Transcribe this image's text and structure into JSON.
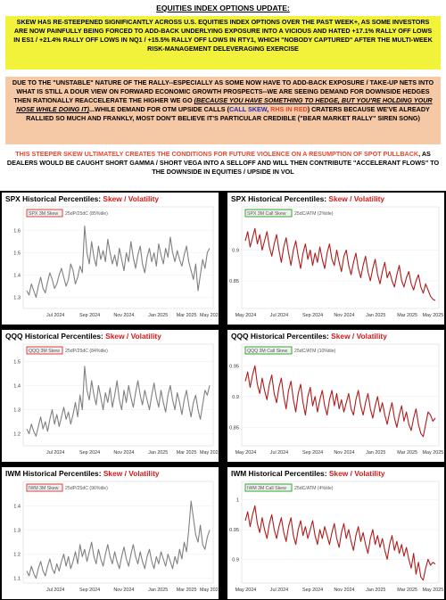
{
  "header": {
    "title": "EQUITIES INDEX OPTIONS UPDATE:"
  },
  "yellow_box": {
    "text": "SKEW HAS RE-STEEPENED SIGNIFICANTLY ACROSS U.S. EQUITIES INDEX OPTIONS OVER THE PAST WEEK+, AS SOME INVESTORS ARE NOW PAINFULLY BEING FORCED TO ADD-BACK UNDERLYING EXPOSURE INTO A VICIOUS AND HATED +17.1% RALLY OFF LOWS IN ES1 / +21.4% RALLY OFF LOWS IN NQ1 / +15.5% RALLY OFF LOWS IN RTY1, WHICH \"NOBODY CAPTURED\" AFTER THE MULTI-WEEK RISK-MANAGEMENT DELEVERAGING EXERCISE"
  },
  "peach_box": {
    "part1": "DUE TO THE \"UNSTABLE\" NATURE OF THE RALLY--ESPECIALLY AS SOME NOW HAVE TO ADD-BACK EXPOSURE / TAKE-UP NETS INTO WHAT IS STILL A DOUR VIEW ON FORWARD ECONOMIC GROWTH PROSPECTS--WE ARE SEEING DEMAND FOR DOWNSIDE HEDGES THEN RATIONALLY REACCELERATE THE HIGHER WE GO ",
    "part2": "(BECAUSE YOU HAVE SOMETHING TO HEDGE, BUT YOU'RE HOLDING YOUR NOSE WHILE DOING IT)",
    "part3": "...WHILE DEMAND FOR OTM UPSIDE CALLS (",
    "call_skew": "CALL SKEW",
    "comma": ", ",
    "rhs_red": "RHS IN RED",
    "part4": ") CRATERS BECAUSE WE'VE ALREADY RALLIED SO MUCH AND FRANKLY, MOST DON'T BELIEVE IT'S PARTICULAR CREDIBLE (\"BEAR MARKET RALLY\" SIREN SONG)"
  },
  "warning": {
    "highlight": "THIS STEEPER SKEW ULTIMATELY CREATES THE CONDITIONS FOR FUTURE VIOLENCE ON A RESUMPTION OF SPOT PULLBACK",
    "rest": ", AS DEALERS WOULD BE CAUGHT SHORT GAMMA / SHORT VEGA INTO A SELLOFF AND WILL THEN CONTRIBUTE \"ACCELERANT FLOWS\" TO THE DOWNSIDE IN EQUITIES / UPSIDE IN VOL"
  },
  "colors": {
    "put_line": "#808080",
    "call_line": "#b01c1c",
    "put_legend_border": "#d94040",
    "call_legend_border": "#2ea82e",
    "title_red": "#d21b1b"
  },
  "chart_data": [
    {
      "id": "spx-put",
      "type": "line",
      "title_prefix": "SPX Historical Percentiles: ",
      "title_highlight": "Skew / Volatility",
      "legend_label": "SPX 3M Skew",
      "legend_note": "25dP/25dC (85%tile)",
      "ylim": [
        1.25,
        1.65
      ],
      "yticks": [
        "1.3",
        "1.4",
        "1.5",
        "1.6"
      ],
      "ytick_values": [
        1.3,
        1.4,
        1.5,
        1.6
      ],
      "xticks": [
        "Jul 2024",
        "Sep 2024",
        "Nov 2024",
        "Jan 2025",
        "Mar 2025",
        "May 2025"
      ],
      "xtick_pos": [
        0.17,
        0.35,
        0.53,
        0.71,
        0.86,
        0.985
      ],
      "values": [
        1.33,
        1.31,
        1.36,
        1.33,
        1.3,
        1.35,
        1.39,
        1.34,
        1.32,
        1.37,
        1.41,
        1.38,
        1.34,
        1.36,
        1.4,
        1.43,
        1.39,
        1.35,
        1.38,
        1.45,
        1.42,
        1.36,
        1.39,
        1.44,
        1.41,
        1.62,
        1.5,
        1.45,
        1.55,
        1.48,
        1.44,
        1.53,
        1.47,
        1.51,
        1.46,
        1.56,
        1.5,
        1.45,
        1.49,
        1.44,
        1.52,
        1.47,
        1.42,
        1.5,
        1.46,
        1.55,
        1.48,
        1.43,
        1.49,
        1.53,
        1.45,
        1.41,
        1.48,
        1.52,
        1.46,
        1.5,
        1.44,
        1.54,
        1.49,
        1.45,
        1.52,
        1.48,
        1.57,
        1.5,
        1.46,
        1.51,
        1.47,
        1.44,
        1.49,
        1.53,
        1.46,
        1.42,
        1.38,
        1.45,
        1.33,
        1.4,
        1.47,
        1.43,
        1.5,
        1.52
      ],
      "side": "left"
    },
    {
      "id": "spx-call",
      "type": "line",
      "title_prefix": "SPX Historical Percentiles: ",
      "title_highlight": "Skew / Volatility",
      "legend_label": "SPX 3M Call Skew",
      "legend_note": "25dC/ATM (2%tile)",
      "ylim": [
        0.805,
        0.95
      ],
      "yticks": [
        "0.85",
        "0.9"
      ],
      "ytick_values": [
        0.85,
        0.9
      ],
      "xticks": [
        "May 2024",
        "Jul 2024",
        "Sep 2024",
        "Nov 2024",
        "Jan 2025",
        "Mar 2025",
        "May 2025"
      ],
      "xtick_pos": [
        0.02,
        0.19,
        0.36,
        0.52,
        0.68,
        0.84,
        0.97
      ],
      "values": [
        0.915,
        0.93,
        0.905,
        0.92,
        0.935,
        0.91,
        0.925,
        0.9,
        0.915,
        0.93,
        0.905,
        0.89,
        0.91,
        0.925,
        0.9,
        0.88,
        0.905,
        0.92,
        0.895,
        0.875,
        0.9,
        0.915,
        0.89,
        0.87,
        0.895,
        0.91,
        0.885,
        0.9,
        0.875,
        0.895,
        0.88,
        0.905,
        0.885,
        0.87,
        0.895,
        0.91,
        0.885,
        0.875,
        0.9,
        0.88,
        0.865,
        0.89,
        0.9,
        0.875,
        0.86,
        0.88,
        0.895,
        0.87,
        0.855,
        0.875,
        0.89,
        0.865,
        0.85,
        0.87,
        0.885,
        0.86,
        0.845,
        0.865,
        0.88,
        0.855,
        0.865,
        0.85,
        0.84,
        0.86,
        0.875,
        0.85,
        0.84,
        0.855,
        0.865,
        0.845,
        0.835,
        0.85,
        0.86,
        0.84,
        0.83,
        0.845,
        0.835,
        0.825,
        0.82,
        0.818
      ],
      "side": "right"
    },
    {
      "id": "qqq-put",
      "type": "line",
      "title_prefix": "QQQ Historical Percentiles: ",
      "title_highlight": "Skew / Volatility",
      "legend_label": "QQQ 3M Skew",
      "legend_note": "25dP/25dC (84%tile)",
      "ylim": [
        1.15,
        1.52
      ],
      "yticks": [
        "1.2",
        "1.3",
        "1.4",
        "1.5"
      ],
      "ytick_values": [
        1.2,
        1.3,
        1.4,
        1.5
      ],
      "xticks": [
        "Jul 2024",
        "Sep 2024",
        "Nov 2024",
        "Jan 2025",
        "Mar 2025",
        "May 2025"
      ],
      "xtick_pos": [
        0.17,
        0.35,
        0.53,
        0.71,
        0.86,
        0.985
      ],
      "values": [
        1.22,
        1.2,
        1.24,
        1.21,
        1.19,
        1.23,
        1.27,
        1.22,
        1.25,
        1.21,
        1.26,
        1.3,
        1.24,
        1.28,
        1.23,
        1.27,
        1.31,
        1.26,
        1.29,
        1.24,
        1.28,
        1.33,
        1.27,
        1.36,
        1.3,
        1.48,
        1.38,
        1.34,
        1.42,
        1.36,
        1.32,
        1.4,
        1.35,
        1.3,
        1.37,
        1.33,
        1.39,
        1.31,
        1.36,
        1.42,
        1.34,
        1.3,
        1.38,
        1.33,
        1.4,
        1.35,
        1.31,
        1.37,
        1.42,
        1.36,
        1.32,
        1.38,
        1.34,
        1.3,
        1.36,
        1.41,
        1.35,
        1.31,
        1.38,
        1.33,
        1.29,
        1.36,
        1.4,
        1.34,
        1.3,
        1.37,
        1.33,
        1.28,
        1.34,
        1.38,
        1.32,
        1.27,
        1.33,
        1.36,
        1.3,
        1.26,
        1.32,
        1.38,
        1.36,
        1.4
      ],
      "side": "left"
    },
    {
      "id": "qqq-call",
      "type": "line",
      "title_prefix": "QQQ Historical Percentiles: ",
      "title_highlight": "Skew / Volatility",
      "legend_label": "QQQ 3M Call Skew",
      "legend_note": "25dC/ATM (10%tile)",
      "ylim": [
        0.82,
        0.965
      ],
      "yticks": [
        "0.85",
        "0.9",
        "0.95"
      ],
      "ytick_values": [
        0.85,
        0.9,
        0.95
      ],
      "xticks": [
        "May 2024",
        "Jul 2024",
        "Sep 2024",
        "Nov 2024",
        "Jan 2025",
        "Mar 2025",
        "May 2025"
      ],
      "xtick_pos": [
        0.02,
        0.19,
        0.36,
        0.52,
        0.68,
        0.84,
        0.97
      ],
      "values": [
        0.925,
        0.94,
        0.915,
        0.935,
        0.95,
        0.92,
        0.905,
        0.93,
        0.91,
        0.895,
        0.92,
        0.935,
        0.905,
        0.89,
        0.915,
        0.93,
        0.9,
        0.88,
        0.91,
        0.925,
        0.895,
        0.875,
        0.905,
        0.92,
        0.89,
        0.87,
        0.9,
        0.915,
        0.885,
        0.9,
        0.875,
        0.895,
        0.91,
        0.885,
        0.87,
        0.895,
        0.91,
        0.885,
        0.905,
        0.88,
        0.895,
        0.875,
        0.89,
        0.905,
        0.88,
        0.87,
        0.895,
        0.91,
        0.885,
        0.87,
        0.89,
        0.905,
        0.88,
        0.865,
        0.885,
        0.9,
        0.875,
        0.89,
        0.87,
        0.855,
        0.875,
        0.89,
        0.865,
        0.85,
        0.87,
        0.885,
        0.86,
        0.875,
        0.855,
        0.845,
        0.865,
        0.88,
        0.855,
        0.84,
        0.835,
        0.855,
        0.875,
        0.87,
        0.86,
        0.865
      ],
      "side": "right"
    },
    {
      "id": "iwm-put",
      "type": "line",
      "title_prefix": "IWM Historical Percentiles: ",
      "title_highlight": "Skew / Volatility",
      "legend_label": "IWM 3M Skew",
      "legend_note": "25dP/25dC (96%tile)",
      "ylim": [
        1.08,
        1.45
      ],
      "yticks": [
        "1.1",
        "1.2",
        "1.3",
        "1.4"
      ],
      "ytick_values": [
        1.1,
        1.2,
        1.3,
        1.4
      ],
      "xticks": [
        "Jul 2024",
        "Sep 2024",
        "Nov 2024",
        "Jan 2025",
        "Mar 2025",
        "May 2025"
      ],
      "xtick_pos": [
        0.17,
        0.35,
        0.53,
        0.71,
        0.86,
        0.985
      ],
      "values": [
        1.13,
        1.11,
        1.15,
        1.12,
        1.1,
        1.14,
        1.17,
        1.13,
        1.11,
        1.15,
        1.18,
        1.14,
        1.12,
        1.16,
        1.13,
        1.17,
        1.2,
        1.15,
        1.19,
        1.14,
        1.17,
        1.21,
        1.16,
        1.24,
        1.19,
        1.22,
        1.17,
        1.21,
        1.25,
        1.19,
        1.16,
        1.22,
        1.18,
        1.15,
        1.2,
        1.24,
        1.19,
        1.16,
        1.21,
        1.17,
        1.14,
        1.19,
        1.23,
        1.18,
        1.15,
        1.2,
        1.24,
        1.19,
        1.16,
        1.21,
        1.17,
        1.14,
        1.19,
        1.22,
        1.17,
        1.14,
        1.19,
        1.16,
        1.21,
        1.18,
        1.15,
        1.2,
        1.17,
        1.14,
        1.19,
        1.16,
        1.22,
        1.18,
        1.25,
        1.21,
        1.3,
        1.42,
        1.35,
        1.28,
        1.25,
        1.32,
        1.24,
        1.22,
        1.27,
        1.3
      ],
      "side": "left"
    },
    {
      "id": "iwm-call",
      "type": "line",
      "title_prefix": "IWM Historical Percentiles: ",
      "title_highlight": "Skew / Volatility",
      "legend_label": "IWM 3M Call Skew",
      "legend_note": "25dC/ATM (4%tile)",
      "ylim": [
        0.86,
        1.01
      ],
      "yticks": [
        "0.9",
        "0.95",
        "1"
      ],
      "ytick_values": [
        0.9,
        0.95,
        1.0
      ],
      "xticks": [
        "May 2024",
        "Jul 2024",
        "Sep 2024",
        "Nov 2024",
        "Jan 2025",
        "Mar 2025",
        "May 2025"
      ],
      "xtick_pos": [
        0.02,
        0.19,
        0.36,
        0.52,
        0.68,
        0.84,
        0.97
      ],
      "values": [
        0.965,
        0.98,
        0.955,
        0.975,
        0.99,
        0.96,
        0.945,
        0.97,
        0.95,
        0.935,
        0.96,
        0.975,
        0.95,
        0.935,
        0.955,
        0.97,
        0.945,
        0.93,
        0.955,
        0.97,
        0.94,
        0.925,
        0.95,
        0.965,
        0.94,
        0.955,
        0.935,
        0.95,
        0.965,
        0.94,
        0.925,
        0.95,
        0.935,
        0.955,
        0.94,
        0.925,
        0.945,
        0.96,
        0.935,
        0.92,
        0.945,
        0.96,
        0.935,
        0.95,
        0.93,
        0.915,
        0.94,
        0.955,
        0.93,
        0.945,
        0.925,
        0.91,
        0.935,
        0.95,
        0.925,
        0.94,
        0.92,
        0.935,
        0.915,
        0.9,
        0.925,
        0.94,
        0.915,
        0.93,
        0.91,
        0.925,
        0.905,
        0.92,
        0.9,
        0.885,
        0.91,
        0.875,
        0.895,
        0.87,
        0.865,
        0.885,
        0.9,
        0.89,
        0.895,
        0.892
      ],
      "side": "right"
    }
  ]
}
